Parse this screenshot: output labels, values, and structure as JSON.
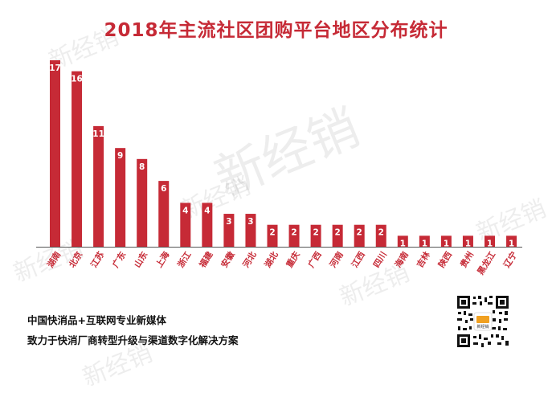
{
  "chart_data": {
    "type": "bar",
    "title": "2018年主流社区团购平台地区分布统计",
    "categories": [
      "湖南",
      "北京",
      "江苏",
      "广东",
      "山东",
      "上海",
      "浙江",
      "福建",
      "安徽",
      "河北",
      "湖北",
      "重庆",
      "广西",
      "河南",
      "江西",
      "四川",
      "海南",
      "吉林",
      "陕西",
      "贵州",
      "黑龙江",
      "辽宁"
    ],
    "values": [
      17,
      16,
      11,
      9,
      8,
      6,
      4,
      4,
      3,
      3,
      2,
      2,
      2,
      2,
      2,
      2,
      1,
      1,
      1,
      1,
      1,
      1
    ],
    "ylim": [
      0,
      17
    ],
    "bar_color": "#c62a36",
    "label_color": "#c62a36",
    "grid": false
  },
  "footer": {
    "line1": "中国快消品+互联网专业新媒体",
    "line2": "致力于快消厂商转型升级与渠道数字化解决方案"
  },
  "watermark": {
    "text": "新经销"
  },
  "qr_code": {
    "center_text": "新经销"
  }
}
